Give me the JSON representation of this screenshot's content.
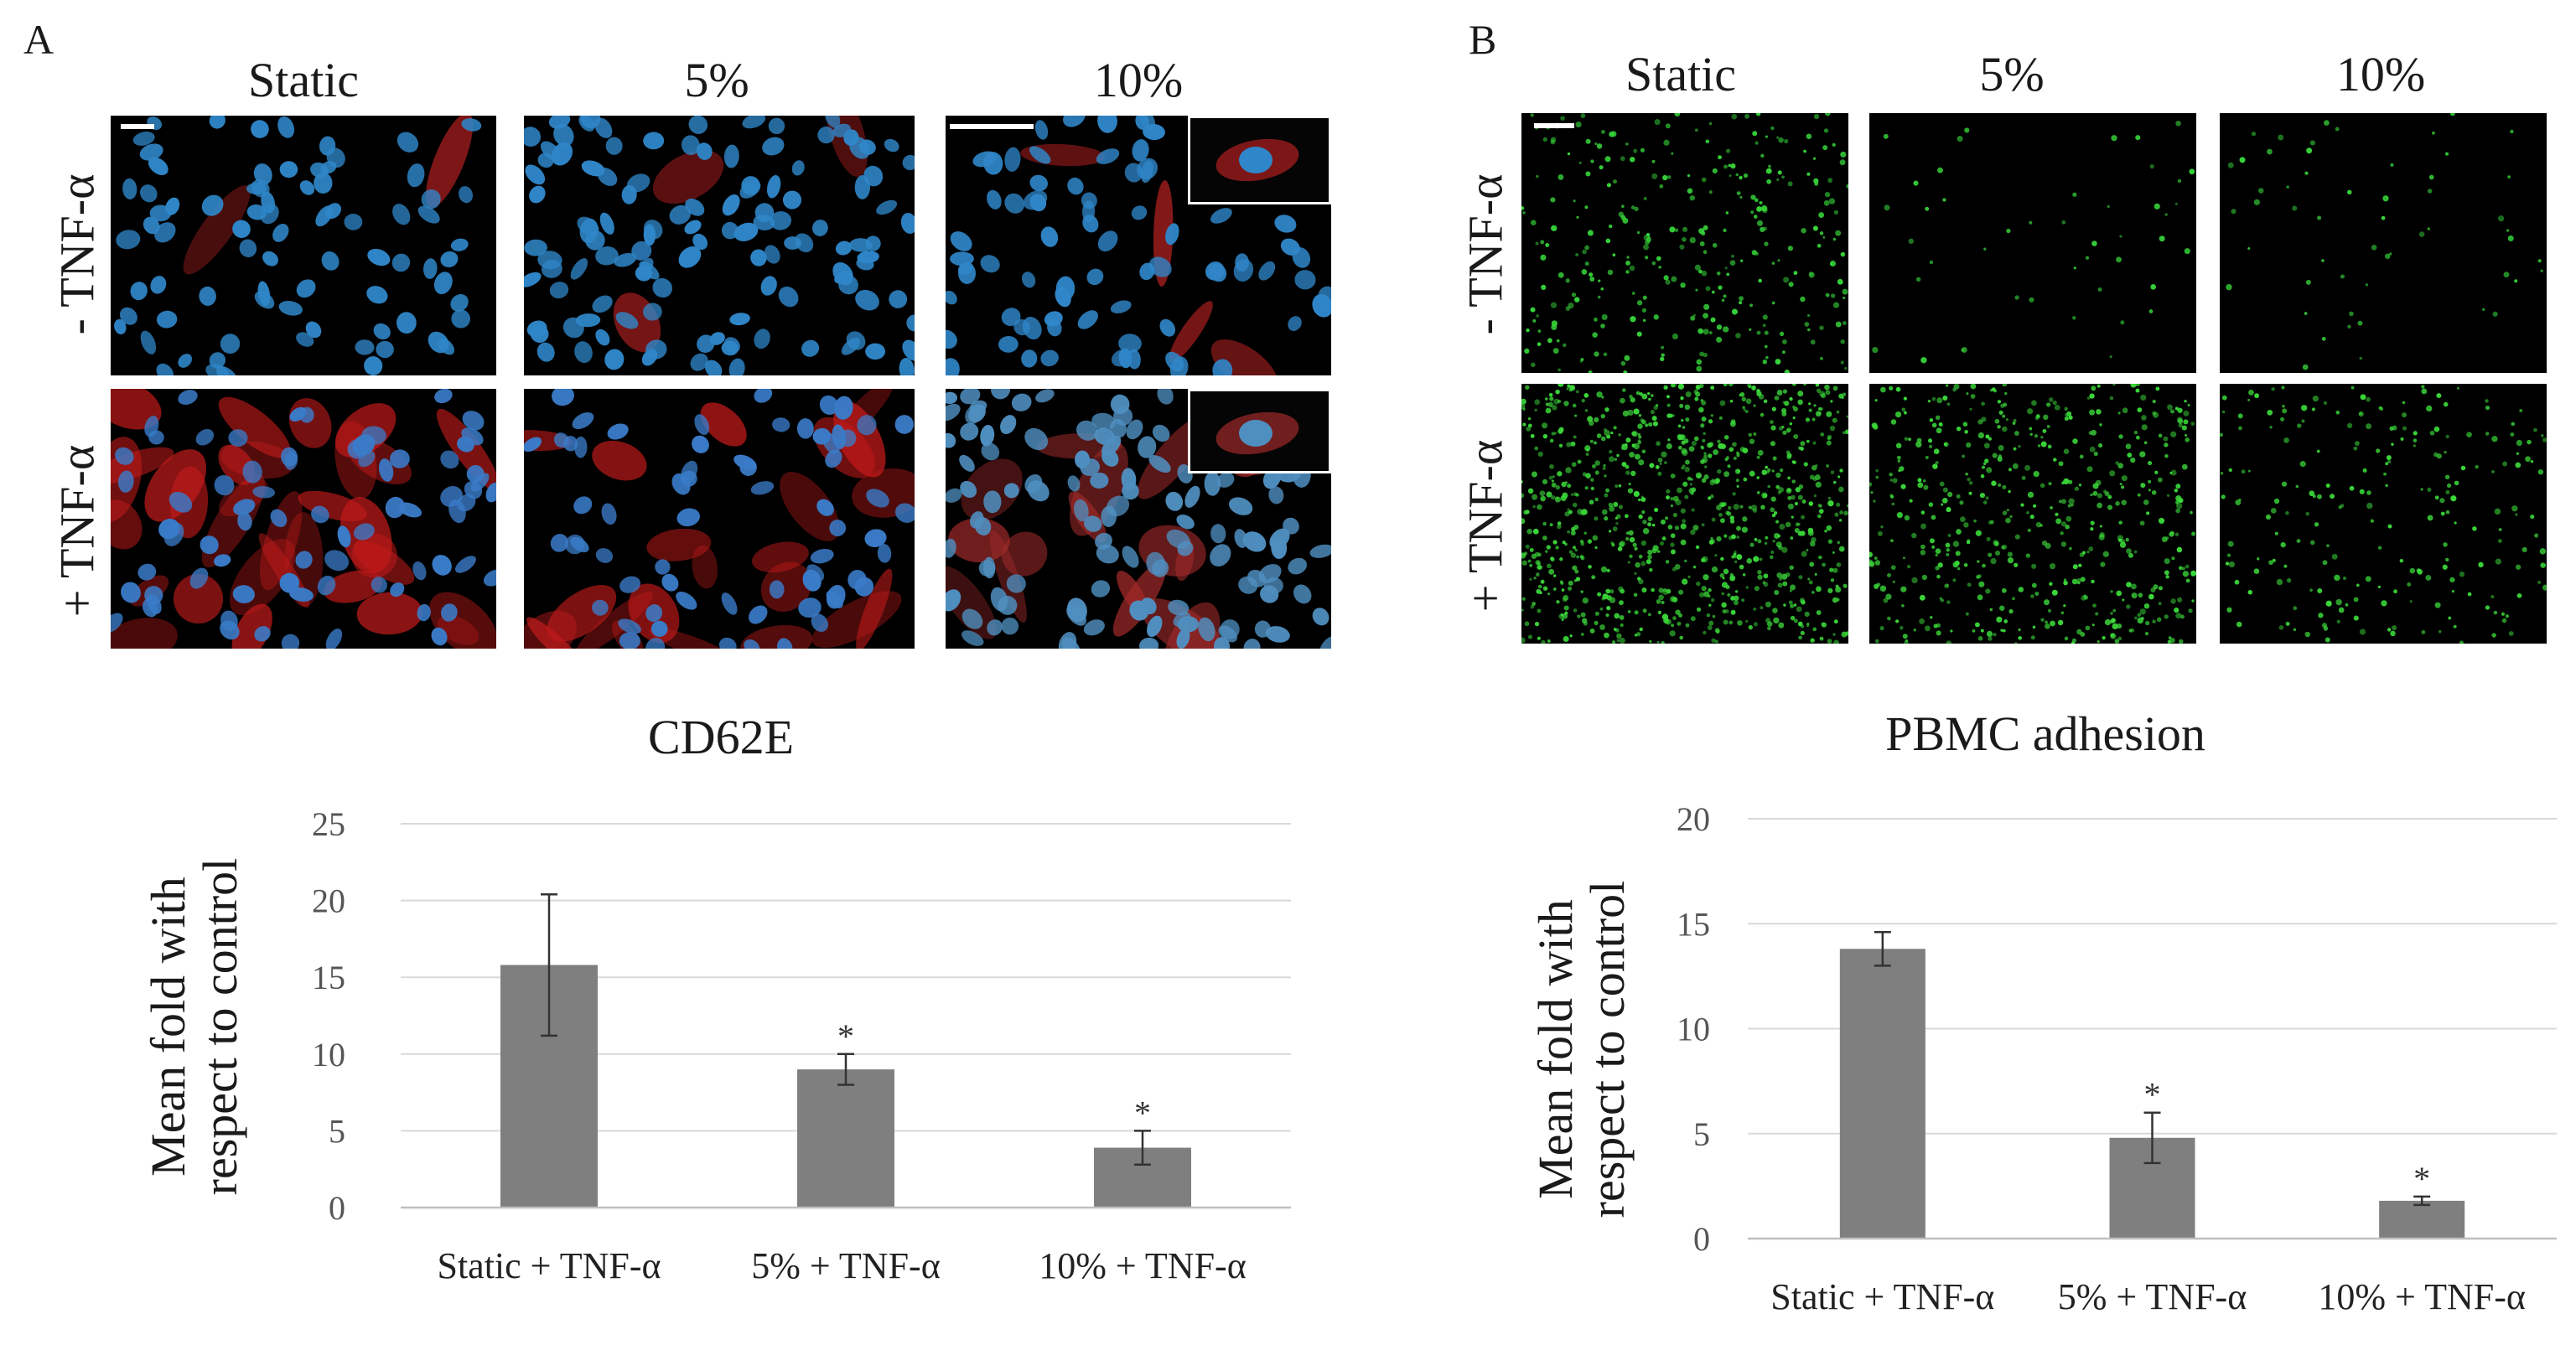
{
  "panel_a": {
    "letter": "A",
    "columns": [
      "Static",
      "5%",
      "10%"
    ],
    "rows": [
      "- TNF-α",
      "+ TNF-α"
    ],
    "images": [
      {
        "row": 0,
        "col": 0,
        "nuclei_color": "#2f86c8",
        "stain_color": "#b02020",
        "stain_level": 0.05,
        "density": 0.6,
        "scale_bar": true
      },
      {
        "row": 0,
        "col": 1,
        "nuclei_color": "#2f86c8",
        "stain_color": "#b02020",
        "stain_level": 0.08,
        "density": 0.9,
        "scale_bar": false
      },
      {
        "row": 0,
        "col": 2,
        "nuclei_color": "#2f86c8",
        "stain_color": "#b02020",
        "stain_level": 0.1,
        "density": 0.6,
        "scale_bar": true,
        "inset": true
      },
      {
        "row": 1,
        "col": 0,
        "nuclei_color": "#3a7bc8",
        "stain_color": "#c01a1a",
        "stain_level": 0.8,
        "density": 0.55,
        "scale_bar": false
      },
      {
        "row": 1,
        "col": 1,
        "nuclei_color": "#3a7bc8",
        "stain_color": "#c01a1a",
        "stain_level": 0.55,
        "density": 0.5,
        "scale_bar": false
      },
      {
        "row": 1,
        "col": 2,
        "nuclei_color": "#4f8fc0",
        "stain_color": "#a02a2a",
        "stain_level": 0.45,
        "density": 1.0,
        "scale_bar": false,
        "inset": true
      }
    ]
  },
  "panel_b": {
    "letter": "B",
    "columns": [
      "Static",
      "5%",
      "10%"
    ],
    "rows": [
      "- TNF-α",
      "+ TNF-α"
    ],
    "images": [
      {
        "row": 0,
        "col": 0,
        "dot_color": "#36d43a",
        "density": 0.35,
        "scale_bar": true
      },
      {
        "row": 0,
        "col": 1,
        "dot_color": "#36d43a",
        "density": 0.05
      },
      {
        "row": 0,
        "col": 2,
        "dot_color": "#36d43a",
        "density": 0.06
      },
      {
        "row": 1,
        "col": 0,
        "dot_color": "#3bd83a",
        "density": 1.0
      },
      {
        "row": 1,
        "col": 1,
        "dot_color": "#3bd83a",
        "density": 0.6
      },
      {
        "row": 1,
        "col": 2,
        "dot_color": "#3bd83a",
        "density": 0.25
      }
    ]
  },
  "chart_data": [
    {
      "type": "bar",
      "title": "CD62E",
      "ylabel": "Mean fold with respect to control",
      "ylabel_lines": [
        "Mean fold with",
        "respect to control"
      ],
      "categories": [
        "Static + TNF-α",
        "5% + TNF-α",
        "10% + TNF-α"
      ],
      "values": [
        15.8,
        9.0,
        3.9
      ],
      "errors": [
        4.6,
        1.0,
        1.1
      ],
      "significance": [
        "",
        "*",
        "*"
      ],
      "ylim": [
        0,
        25
      ],
      "yticks": [
        0,
        5,
        10,
        15,
        20,
        25
      ],
      "grid": true,
      "bar_color": "#7f7f7f"
    },
    {
      "type": "bar",
      "title": "PBMC adhesion",
      "ylabel": "Mean fold with respect to control",
      "ylabel_lines": [
        "Mean fold with",
        "respect to control"
      ],
      "categories": [
        "Static + TNF-α",
        "5% + TNF-α",
        "10% + TNF-α"
      ],
      "values": [
        13.8,
        4.8,
        1.8
      ],
      "errors": [
        0.8,
        1.2,
        0.2
      ],
      "significance": [
        "",
        "*",
        "*"
      ],
      "ylim": [
        0,
        20
      ],
      "yticks": [
        0,
        5,
        10,
        15,
        20
      ],
      "grid": true,
      "bar_color": "#7f7f7f"
    }
  ]
}
